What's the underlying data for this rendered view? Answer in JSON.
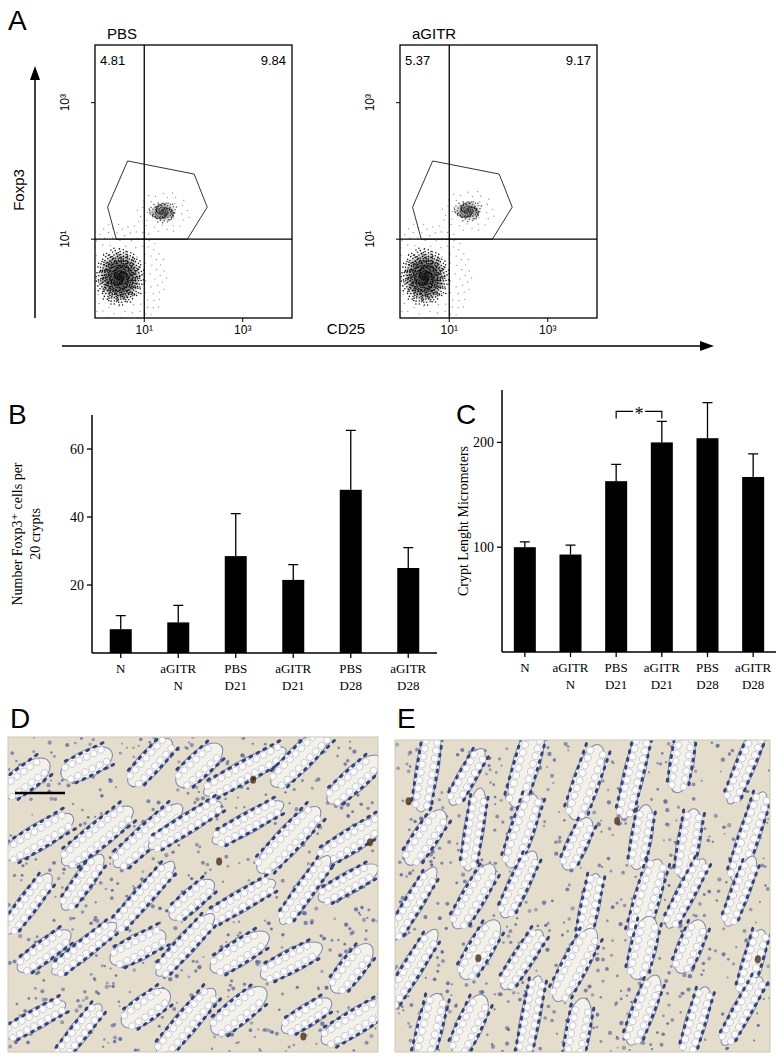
{
  "figure": {
    "panel_labels": [
      "A",
      "B",
      "C",
      "D",
      "E"
    ],
    "shared_xlabel": "CD25",
    "shared_ylabel": "Foxp3"
  },
  "chart_data": [
    {
      "type": "scatter",
      "title": "PBS",
      "log": true,
      "x": [
        3.2,
        24
      ],
      "values": [
        2.8,
        25
      ],
      "xlim": [
        1,
        10000
      ],
      "ylim": [
        0.7,
        7000
      ],
      "xticks": [
        {
          "value": 10,
          "label": "10¹"
        },
        {
          "value": 1000,
          "label": "10³"
        }
      ],
      "yticks": [
        {
          "value": 10,
          "label": "10¹"
        },
        {
          "value": 1000,
          "label": "10³"
        }
      ],
      "quadrant_lines": {
        "x": 10,
        "y": 10
      },
      "gate": [
        [
          1.8,
          29.5
        ],
        [
          4.6,
          140
        ],
        [
          103,
          90
        ],
        [
          190,
          29.5
        ],
        [
          75,
          10
        ],
        [
          2.7,
          10
        ]
      ],
      "annotations": [
        {
          "text": "4.81"
        },
        {
          "text": "9.84"
        }
      ]
    },
    {
      "type": "scatter",
      "title": "aGITR",
      "log": true,
      "x": [
        3.2,
        24
      ],
      "values": [
        2.8,
        26
      ],
      "xlim": [
        1,
        10000
      ],
      "ylim": [
        0.7,
        7000
      ],
      "xticks": [
        {
          "value": 10,
          "label": "10¹"
        },
        {
          "value": 1000,
          "label": "10³"
        }
      ],
      "yticks": [
        {
          "value": 10,
          "label": "10¹"
        },
        {
          "value": 1000,
          "label": "10³"
        }
      ],
      "quadrant_lines": {
        "x": 10,
        "y": 10
      },
      "gate": [
        [
          1.8,
          29.5
        ],
        [
          4.6,
          140
        ],
        [
          103,
          90
        ],
        [
          190,
          29.5
        ],
        [
          75,
          10
        ],
        [
          2.7,
          10
        ]
      ],
      "annotations": [
        {
          "text": "5.37"
        },
        {
          "text": "9.17"
        }
      ]
    },
    {
      "type": "bar",
      "categories": [
        "N",
        "aGITR N",
        "PBS D21",
        "aGITR D21",
        "PBS D28",
        "aGITR D28"
      ],
      "values": [
        7,
        9,
        28.5,
        21.5,
        48,
        25
      ],
      "errors": [
        4,
        5,
        12.5,
        4.5,
        17.5,
        6
      ],
      "ylabel": [
        "Number Foxp3⁺ cells per",
        "20 crypts"
      ],
      "ylim": [
        0,
        70
      ],
      "yticks": [
        20,
        40,
        60
      ],
      "color": "#000000"
    },
    {
      "type": "bar",
      "categories": [
        "N",
        "aGITR N",
        "PBS D21",
        "aGITR D21",
        "PBS D28",
        "aGITR D28"
      ],
      "values": [
        100,
        93,
        163,
        200,
        204,
        167
      ],
      "errors": [
        5,
        9,
        16,
        20,
        34,
        22
      ],
      "ylabel": "Crypt Lenght Micrometers",
      "ylim": [
        0,
        250
      ],
      "yticks": [
        100,
        200
      ],
      "color": "#000000",
      "annotations": [
        {
          "text": "*",
          "between": [
            2,
            3
          ]
        }
      ]
    }
  ]
}
